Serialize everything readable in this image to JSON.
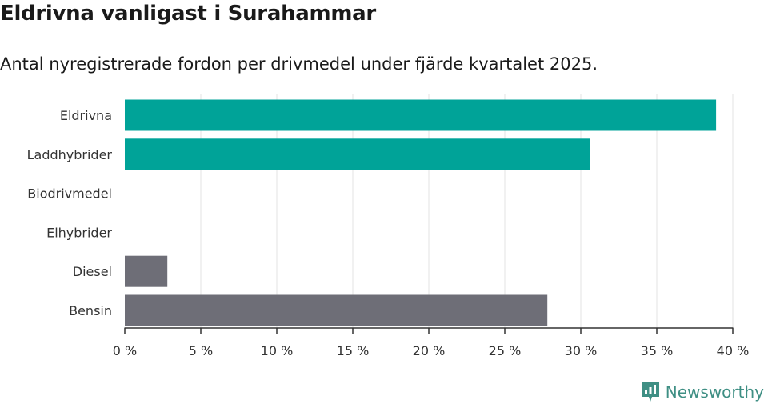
{
  "title": "Eldrivna vanligast i Surahammar",
  "subtitle": "Antal nyregistrerade fordon per drivmedel under fjärde kvartalet 2025.",
  "brand": {
    "name": "Newsworthy",
    "icon": "newsworthy-logo-icon",
    "color": "#3f8f84"
  },
  "chart_data": {
    "type": "bar",
    "orientation": "horizontal",
    "categories": [
      "Eldrivna",
      "Laddhybrider",
      "Biodrivmedel",
      "Elhybrider",
      "Diesel",
      "Bensin"
    ],
    "values": [
      38.9,
      30.6,
      0,
      0,
      2.8,
      27.8
    ],
    "colors": [
      "#00a398",
      "#00a398",
      "#00a398",
      "#6e6e77",
      "#6e6e77",
      "#6e6e77"
    ],
    "xlim": [
      0,
      40
    ],
    "ticks": [
      0,
      5,
      10,
      15,
      20,
      25,
      30,
      35,
      40
    ],
    "tick_labels": [
      "0 %",
      "5 %",
      "10 %",
      "15 %",
      "20 %",
      "25 %",
      "30 %",
      "35 %",
      "40 %"
    ],
    "grid": true,
    "xlabel": "",
    "ylabel": ""
  }
}
